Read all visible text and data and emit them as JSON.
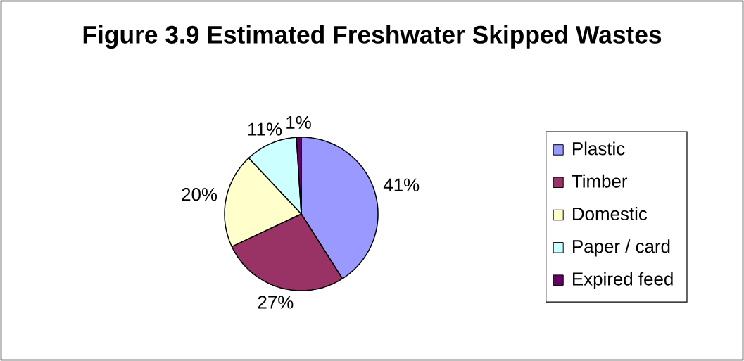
{
  "chart_data": {
    "type": "pie",
    "title": "Figure 3.9 Estimated Freshwater Skipped Wastes",
    "categories": [
      "Plastic",
      "Timber",
      "Domestic",
      "Paper / card",
      "Expired feed"
    ],
    "values": [
      41,
      27,
      20,
      11,
      1
    ],
    "colors": [
      "#9999ff",
      "#993366",
      "#ffffcc",
      "#ccffff",
      "#660066"
    ],
    "value_labels": [
      "41%",
      "27%",
      "20%",
      "11%",
      "1%"
    ],
    "legend": "right"
  }
}
